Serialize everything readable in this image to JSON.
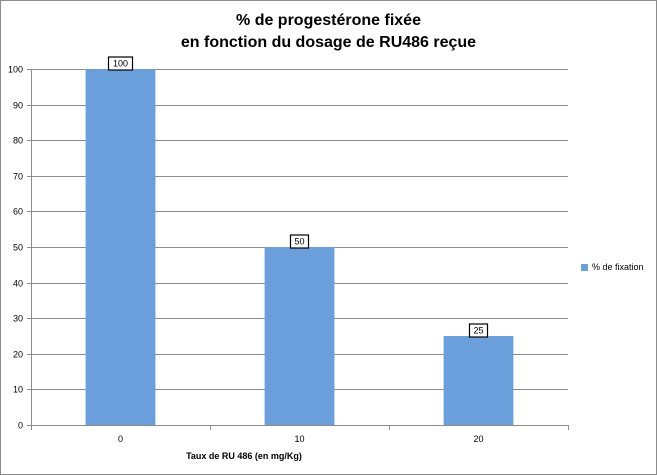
{
  "chart_data": {
    "type": "bar",
    "title_lines": [
      "% de progestérone fixée",
      "en fonction du dosage de RU486 reçue"
    ],
    "xlabel": "Taux de RU 486 (en mg/Kg)",
    "ylabel": "",
    "categories": [
      "0",
      "10",
      "20"
    ],
    "series": [
      {
        "name": "% de fixation",
        "values": [
          100,
          50,
          25
        ],
        "data_labels": [
          "100",
          "50",
          "25"
        ],
        "color": "#6a9fdb"
      }
    ],
    "ylim": [
      0,
      100
    ],
    "yticks": [
      0,
      10,
      20,
      30,
      40,
      50,
      60,
      70,
      80,
      90,
      100
    ],
    "grid": true,
    "legend_position": "right"
  }
}
